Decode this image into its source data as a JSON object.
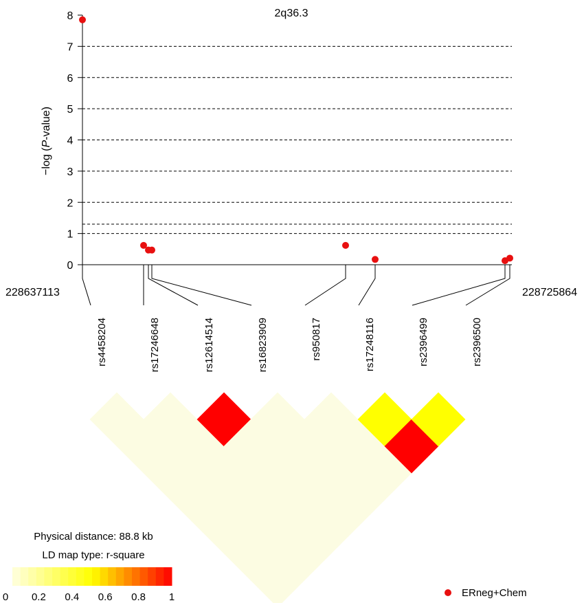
{
  "chart_data": {
    "type": "scatter",
    "title": "2q36.3",
    "ylabel_prefix": "−log (",
    "ylabel_italic": "P",
    "ylabel_suffix": "-value)",
    "ylim": [
      0,
      8
    ],
    "yticks": [
      "0",
      "1",
      "2",
      "3",
      "4",
      "5",
      "6",
      "7",
      "8"
    ],
    "grid": "dashed horizontal",
    "significance_line": 1.3,
    "xrange_start": "228637113",
    "xrange_end": "228725864",
    "snps": [
      "rs4458204",
      "rs17246648",
      "rs12614514",
      "rs16823909",
      "rs950817",
      "rs17248116",
      "rs2396499",
      "rs2396500"
    ],
    "series": [
      {
        "name": "ERneg+Chem",
        "color": "#e81010",
        "points": [
          {
            "snp": "rs4458204",
            "y": 7.85
          },
          {
            "snp": "rs17246648",
            "y": 0.62
          },
          {
            "snp": "rs12614514",
            "y": 0.47
          },
          {
            "snp": "rs16823909",
            "y": 0.47
          },
          {
            "snp": "rs950817",
            "y": 0.62
          },
          {
            "snp": "rs17248116",
            "y": 0.17
          },
          {
            "snp": "rs2396499",
            "y": 0.13
          },
          {
            "snp": "rs2396500",
            "y": 0.21
          }
        ]
      }
    ],
    "ld_matrix": {
      "rs12614514|rs16823909": 1,
      "rs17248116|rs2396499": 0.5,
      "rs2396499|rs2396500": 0.5,
      "rs17248116|rs2396500": 1
    },
    "ld_info": {
      "physical_distance": "Physical distance: 88.8 kb",
      "map_type": "LD map type: r-square"
    },
    "color_scale": {
      "low": "#ffffe0",
      "mid": "#ffff00",
      "high": "#ff0000",
      "ticks": [
        "0",
        "0.2",
        "0.4",
        "0.6",
        "0.8",
        "1"
      ]
    },
    "legend_position": "bottom-right"
  }
}
